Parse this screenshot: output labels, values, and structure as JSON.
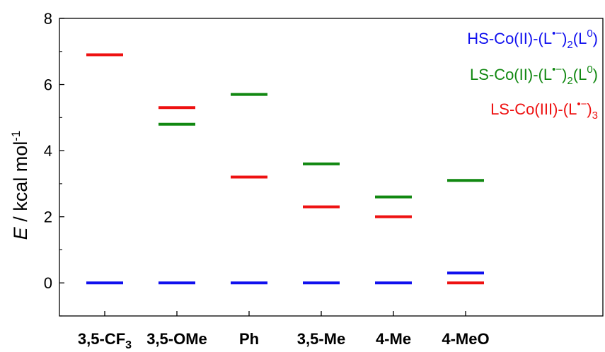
{
  "chart_data": {
    "type": "level-diagram",
    "ylabel": {
      "var": "E",
      "unit_text": " / kcal mol",
      "unit_sup": "-1"
    },
    "ylim": [
      -1,
      8
    ],
    "yticks": [
      0,
      2,
      4,
      6,
      8
    ],
    "grid": false,
    "legend_position": "top-right",
    "categories": [
      {
        "main": "3,5-CF",
        "sub": "3"
      },
      {
        "main": "3,5-OMe",
        "sub": ""
      },
      {
        "main": "Ph",
        "sub": ""
      },
      {
        "main": "3,5-Me",
        "sub": ""
      },
      {
        "main": "4-Me",
        "sub": ""
      },
      {
        "main": "4-MeO",
        "sub": ""
      }
    ],
    "series": [
      {
        "color": "#1010ee",
        "legend": [
          {
            "t": "HS-Co(II)-(L"
          },
          {
            "t": "•−",
            "s": "sup"
          },
          {
            "t": ")"
          },
          {
            "t": "2",
            "s": "sub"
          },
          {
            "t": "(L"
          },
          {
            "t": "0",
            "s": "sup"
          },
          {
            "t": ")"
          }
        ],
        "values": [
          0,
          0,
          0,
          0,
          0,
          0.3
        ]
      },
      {
        "color": "#118811",
        "legend": [
          {
            "t": "LS-Co(II)-(L"
          },
          {
            "t": "•−",
            "s": "sup"
          },
          {
            "t": ")"
          },
          {
            "t": "2",
            "s": "sub"
          },
          {
            "t": "(L"
          },
          {
            "t": "0",
            "s": "sup"
          },
          {
            "t": ")"
          }
        ],
        "values": [
          null,
          4.8,
          5.7,
          3.6,
          2.6,
          3.1
        ]
      },
      {
        "color": "#ee1111",
        "legend": [
          {
            "t": "LS-Co(III)-(L"
          },
          {
            "t": "•−",
            "s": "sup"
          },
          {
            "t": ")"
          },
          {
            "t": "3",
            "s": "sub"
          }
        ],
        "values": [
          6.9,
          5.3,
          3.2,
          2.3,
          2.0,
          0.0
        ]
      }
    ]
  }
}
